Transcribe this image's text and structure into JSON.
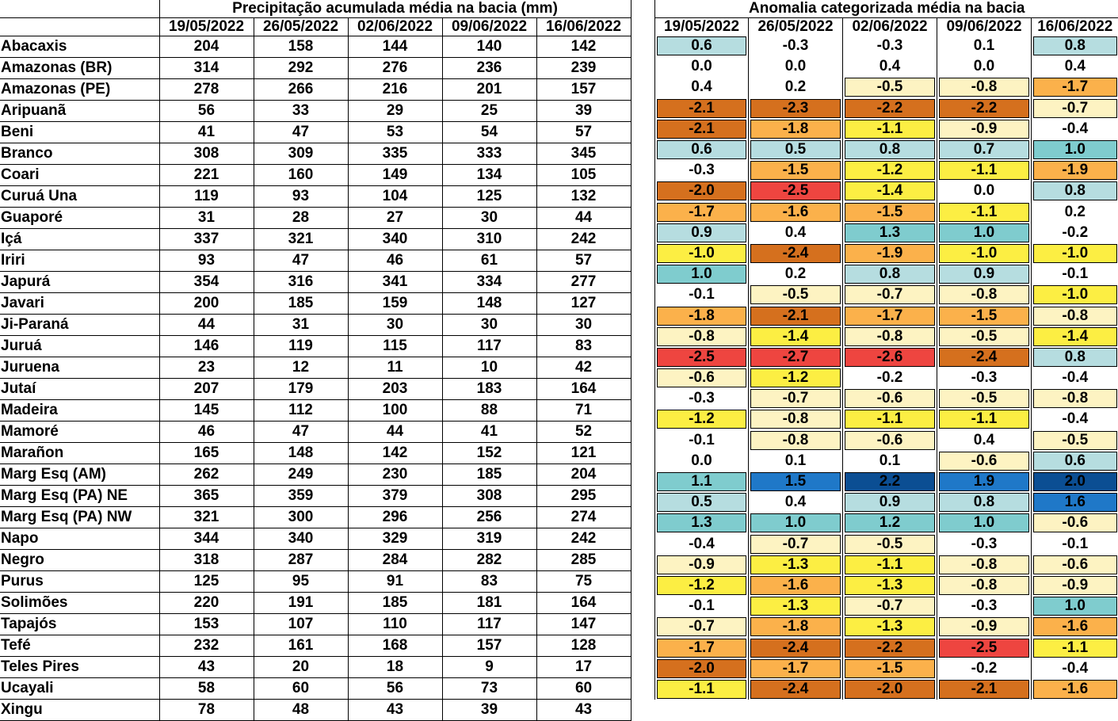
{
  "left_title": "Precipitação acumulada média na bacia (mm)",
  "right_title": "Anomalia categorizada média na bacia",
  "dates": [
    "19/05/2022",
    "26/05/2022",
    "02/06/2022",
    "09/06/2022",
    "16/06/2022"
  ],
  "rows": [
    {
      "name": "Abacaxis",
      "precip": [
        "204",
        "158",
        "144",
        "140",
        "142"
      ],
      "anom": [
        "0.6",
        "-0.3",
        "-0.3",
        "0.1",
        "0.8"
      ]
    },
    {
      "name": "Amazonas (BR)",
      "precip": [
        "314",
        "292",
        "276",
        "236",
        "239"
      ],
      "anom": [
        "0.0",
        "0.0",
        "0.4",
        "0.0",
        "0.4"
      ]
    },
    {
      "name": "Amazonas (PE)",
      "precip": [
        "278",
        "266",
        "216",
        "201",
        "157"
      ],
      "anom": [
        "0.4",
        "0.2",
        "-0.5",
        "-0.8",
        "-1.7"
      ]
    },
    {
      "name": "Aripuanã",
      "precip": [
        "56",
        "33",
        "29",
        "25",
        "39"
      ],
      "anom": [
        "-2.1",
        "-2.3",
        "-2.2",
        "-2.2",
        "-0.7"
      ]
    },
    {
      "name": "Beni",
      "precip": [
        "41",
        "47",
        "53",
        "54",
        "57"
      ],
      "anom": [
        "-2.1",
        "-1.8",
        "-1.1",
        "-0.9",
        "-0.4"
      ]
    },
    {
      "name": "Branco",
      "precip": [
        "308",
        "309",
        "335",
        "333",
        "345"
      ],
      "anom": [
        "0.6",
        "0.5",
        "0.8",
        "0.7",
        "1.0"
      ]
    },
    {
      "name": "Coari",
      "precip": [
        "221",
        "160",
        "149",
        "134",
        "105"
      ],
      "anom": [
        "-0.3",
        "-1.5",
        "-1.2",
        "-1.1",
        "-1.9"
      ]
    },
    {
      "name": "Curuá Una",
      "precip": [
        "119",
        "93",
        "104",
        "125",
        "132"
      ],
      "anom": [
        "-2.0",
        "-2.5",
        "-1.4",
        "0.0",
        "0.8"
      ]
    },
    {
      "name": "Guaporé",
      "precip": [
        "31",
        "28",
        "27",
        "30",
        "44"
      ],
      "anom": [
        "-1.7",
        "-1.6",
        "-1.5",
        "-1.1",
        "0.2"
      ]
    },
    {
      "name": "Içá",
      "precip": [
        "337",
        "321",
        "340",
        "310",
        "242"
      ],
      "anom": [
        "0.9",
        "0.4",
        "1.3",
        "1.0",
        "-0.2"
      ]
    },
    {
      "name": "Iriri",
      "precip": [
        "93",
        "47",
        "46",
        "61",
        "57"
      ],
      "anom": [
        "-1.0",
        "-2.4",
        "-1.9",
        "-1.0",
        "-1.0"
      ]
    },
    {
      "name": "Japurá",
      "precip": [
        "354",
        "316",
        "341",
        "334",
        "277"
      ],
      "anom": [
        "1.0",
        "0.2",
        "0.8",
        "0.9",
        "-0.1"
      ]
    },
    {
      "name": "Javari",
      "precip": [
        "200",
        "185",
        "159",
        "148",
        "127"
      ],
      "anom": [
        "-0.1",
        "-0.5",
        "-0.7",
        "-0.8",
        "-1.0"
      ]
    },
    {
      "name": "Ji-Paraná",
      "precip": [
        "44",
        "31",
        "30",
        "30",
        "30"
      ],
      "anom": [
        "-1.8",
        "-2.1",
        "-1.7",
        "-1.5",
        "-0.8"
      ]
    },
    {
      "name": "Juruá",
      "precip": [
        "146",
        "119",
        "115",
        "117",
        "83"
      ],
      "anom": [
        "-0.8",
        "-1.4",
        "-0.8",
        "-0.5",
        "-1.4"
      ]
    },
    {
      "name": "Juruena",
      "precip": [
        "23",
        "12",
        "11",
        "10",
        "42"
      ],
      "anom": [
        "-2.5",
        "-2.7",
        "-2.6",
        "-2.4",
        "0.8"
      ]
    },
    {
      "name": "Jutaí",
      "precip": [
        "207",
        "179",
        "203",
        "183",
        "164"
      ],
      "anom": [
        "-0.6",
        "-1.2",
        "-0.2",
        "-0.3",
        "-0.4"
      ]
    },
    {
      "name": "Madeira",
      "precip": [
        "145",
        "112",
        "100",
        "88",
        "71"
      ],
      "anom": [
        "-0.3",
        "-0.7",
        "-0.6",
        "-0.5",
        "-0.8"
      ]
    },
    {
      "name": "Mamoré",
      "precip": [
        "46",
        "47",
        "44",
        "41",
        "52"
      ],
      "anom": [
        "-1.2",
        "-0.8",
        "-1.1",
        "-1.1",
        "-0.4"
      ]
    },
    {
      "name": "Marañon",
      "precip": [
        "165",
        "148",
        "142",
        "152",
        "121"
      ],
      "anom": [
        "-0.1",
        "-0.8",
        "-0.6",
        "0.4",
        "-0.5"
      ]
    },
    {
      "name": "Marg Esq (AM)",
      "precip": [
        "262",
        "249",
        "230",
        "185",
        "204"
      ],
      "anom": [
        "0.0",
        "0.1",
        "0.1",
        "-0.6",
        "0.6"
      ]
    },
    {
      "name": "Marg Esq (PA) NE",
      "precip": [
        "365",
        "359",
        "379",
        "308",
        "295"
      ],
      "anom": [
        "1.1",
        "1.5",
        "2.2",
        "1.9",
        "2.0"
      ]
    },
    {
      "name": "Marg Esq (PA) NW",
      "precip": [
        "321",
        "300",
        "296",
        "256",
        "274"
      ],
      "anom": [
        "0.5",
        "0.4",
        "0.9",
        "0.8",
        "1.6"
      ]
    },
    {
      "name": "Napo",
      "precip": [
        "344",
        "340",
        "329",
        "319",
        "242"
      ],
      "anom": [
        "1.3",
        "1.0",
        "1.2",
        "1.0",
        "-0.6"
      ]
    },
    {
      "name": "Negro",
      "precip": [
        "318",
        "287",
        "284",
        "282",
        "285"
      ],
      "anom": [
        "-0.4",
        "-0.7",
        "-0.5",
        "-0.3",
        "-0.1"
      ]
    },
    {
      "name": "Purus",
      "precip": [
        "125",
        "95",
        "91",
        "83",
        "75"
      ],
      "anom": [
        "-0.9",
        "-1.3",
        "-1.1",
        "-0.8",
        "-0.6"
      ]
    },
    {
      "name": "Solimões",
      "precip": [
        "220",
        "191",
        "185",
        "181",
        "164"
      ],
      "anom": [
        "-1.2",
        "-1.6",
        "-1.3",
        "-0.8",
        "-0.9"
      ]
    },
    {
      "name": "Tapajós",
      "precip": [
        "153",
        "107",
        "110",
        "117",
        "147"
      ],
      "anom": [
        "-0.1",
        "-1.3",
        "-0.7",
        "-0.3",
        "1.0"
      ]
    },
    {
      "name": "Tefé",
      "precip": [
        "232",
        "161",
        "168",
        "157",
        "128"
      ],
      "anom": [
        "-0.7",
        "-1.8",
        "-1.3",
        "-0.9",
        "-1.6"
      ]
    },
    {
      "name": "Teles Pires",
      "precip": [
        "43",
        "20",
        "18",
        "9",
        "17"
      ],
      "anom": [
        "-1.7",
        "-2.4",
        "-2.2",
        "-2.5",
        "-1.1"
      ]
    },
    {
      "name": "Ucayali",
      "precip": [
        "58",
        "60",
        "56",
        "73",
        "60"
      ],
      "anom": [
        "-2.0",
        "-1.7",
        "-1.5",
        "-0.2",
        "-0.4"
      ]
    },
    {
      "name": "Xingu",
      "precip": [
        "78",
        "48",
        "43",
        "39",
        "43"
      ],
      "anom": [
        "-1.1",
        "-2.4",
        "-2.0",
        "-2.1",
        "-1.6"
      ]
    }
  ],
  "category_colors": {
    "strong_wet": "#0b4e93",
    "wet": "#1f78c8",
    "mod_wet": "#7fccce",
    "weak_wet": "#b6dde0",
    "neutral": "#ffffff",
    "weak_dry": "#fdf3c2",
    "mod_dry": "#fcee43",
    "dry": "#fbb14b",
    "severe_dry": "#d5701e",
    "extreme_dry": "#ee4540"
  }
}
